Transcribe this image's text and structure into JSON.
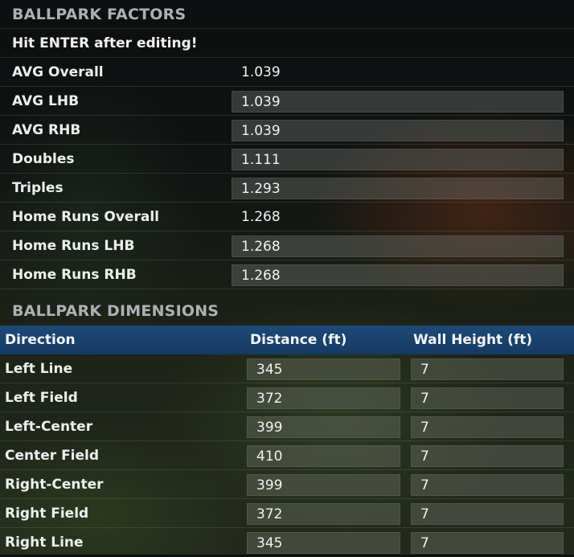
{
  "factors": {
    "title": "BALLPARK FACTORS",
    "note": "Hit ENTER after editing!",
    "rows": [
      {
        "label": "AVG Overall",
        "value": "1.039",
        "editable": false
      },
      {
        "label": "AVG LHB",
        "value": "1.039",
        "editable": true
      },
      {
        "label": "AVG RHB",
        "value": "1.039",
        "editable": true
      },
      {
        "label": "Doubles",
        "value": "1.111",
        "editable": true
      },
      {
        "label": "Triples",
        "value": "1.293",
        "editable": true
      },
      {
        "label": "Home Runs Overall",
        "value": "1.268",
        "editable": false
      },
      {
        "label": "Home Runs LHB",
        "value": "1.268",
        "editable": true
      },
      {
        "label": "Home Runs RHB",
        "value": "1.268",
        "editable": true
      }
    ]
  },
  "dimensions": {
    "title": "BALLPARK DIMENSIONS",
    "headers": {
      "direction": "Direction",
      "distance": "Distance (ft)",
      "wall_height": "Wall Height (ft)"
    },
    "rows": [
      {
        "direction": "Left Line",
        "distance": "345",
        "wall": "7"
      },
      {
        "direction": "Left Field",
        "distance": "372",
        "wall": "7"
      },
      {
        "direction": "Left-Center",
        "distance": "399",
        "wall": "7"
      },
      {
        "direction": "Center Field",
        "distance": "410",
        "wall": "7"
      },
      {
        "direction": "Right-Center",
        "distance": "399",
        "wall": "7"
      },
      {
        "direction": "Right Field",
        "distance": "372",
        "wall": "7"
      },
      {
        "direction": "Right Line",
        "distance": "345",
        "wall": "7"
      }
    ]
  },
  "colors": {
    "header_accent": "#1d4a78"
  }
}
